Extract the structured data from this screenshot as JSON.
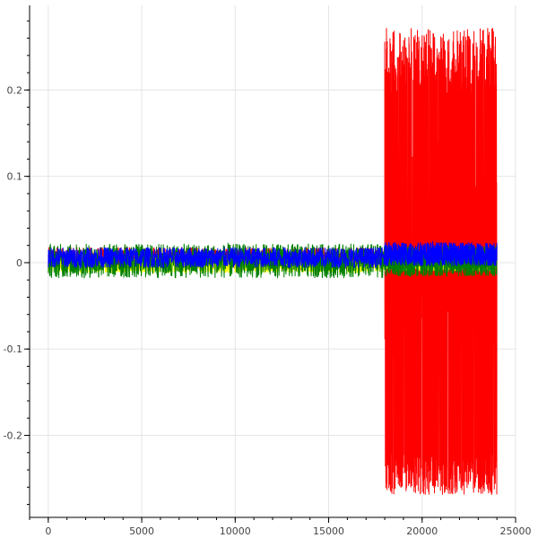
{
  "chart_data": {
    "type": "line",
    "title": "",
    "xlabel": "",
    "ylabel": "",
    "xlim": [
      -1000,
      25000
    ],
    "ylim": [
      -0.295,
      0.298
    ],
    "grid": true,
    "x_ticks": [
      0,
      5000,
      10000,
      15000,
      20000,
      25000
    ],
    "x_tick_labels": [
      "0",
      "5000",
      "10000",
      "15000",
      "20000",
      "25000"
    ],
    "y_ticks": [
      -0.2,
      -0.1,
      0,
      0.1,
      0.2
    ],
    "y_tick_labels": [
      "-0.2",
      "-0.1",
      "0",
      "0.1",
      "0.2"
    ],
    "x_minor_step": 1000,
    "y_minor_step": 0.02,
    "series": [
      {
        "color": "#ff0000",
        "segments": [
          {
            "x": [
              0,
              18000
            ],
            "y_min": -0.008,
            "y_max": 0.018
          },
          {
            "x": [
              18000,
              24000
            ],
            "y_min": -0.27,
            "y_max": 0.272
          }
        ]
      },
      {
        "color": "#ffff00",
        "segments": [
          {
            "x": [
              0,
              18000
            ],
            "y_min": -0.012,
            "y_max": 0.006
          },
          {
            "x": [
              18000,
              24000
            ],
            "y_min": -0.01,
            "y_max": 0.008
          }
        ]
      },
      {
        "color": "#008000",
        "segments": [
          {
            "x": [
              0,
              18000
            ],
            "y_min": -0.018,
            "y_max": 0.022
          },
          {
            "x": [
              18000,
              24000
            ],
            "y_min": -0.016,
            "y_max": 0.02
          }
        ]
      },
      {
        "color": "#0000ff",
        "segments": [
          {
            "x": [
              0,
              18000
            ],
            "y_min": -0.006,
            "y_max": 0.018
          },
          {
            "x": [
              18000,
              24000
            ],
            "y_min": -0.004,
            "y_max": 0.024
          }
        ]
      }
    ]
  }
}
